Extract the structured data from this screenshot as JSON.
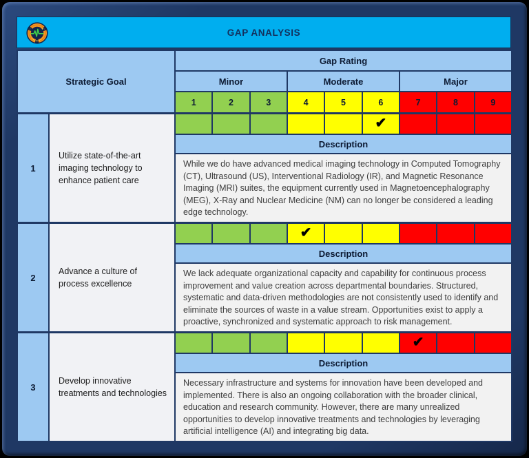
{
  "title": "GAP ANALYSIS",
  "logo": {
    "description": "circular medical seal, orange ring with green ECG pulse line"
  },
  "table": {
    "strategic_goal_header": "Strategic Goal",
    "gap_rating_header": "Gap Rating",
    "severity_groups": {
      "minor": "Minor",
      "moderate": "Moderate",
      "major": "Major"
    },
    "scale": [
      "1",
      "2",
      "3",
      "4",
      "5",
      "6",
      "7",
      "8",
      "9"
    ],
    "description_label": "Description",
    "checkmark_glyph": "✔",
    "rows": [
      {
        "number": "1",
        "goal": "Utilize state-of-the-art imaging technology to enhance patient care",
        "rating": 6,
        "description": "While we do have advanced medical imaging technology in Computed Tomography (CT), Ultrasound (US), Interventional Radiology (IR), and Magnetic Resonance Imaging (MRI) suites, the equipment currently used in Magnetoencephalography (MEG), X-Ray and Nuclear Medicine (NM) can no longer be considered a leading edge technology."
      },
      {
        "number": "2",
        "goal": "Advance a culture of process excellence",
        "rating": 4,
        "description": "We lack adequate organizational capacity and capability for continuous process improvement and value creation across departmental boundaries. Structured, systematic and data-driven methodologies are not consistently used to identify and eliminate the sources of waste in a value stream. Opportunities exist to apply a proactive, synchronized and systematic approach to risk management."
      },
      {
        "number": "3",
        "goal": "Develop innovative treatments and technologies",
        "rating": 7,
        "description": "Necessary infrastructure and systems for innovation have been developed and implemented. There is also an ongoing collaboration with the broader clinical, education and research community. However, there are many unrealized opportunities to develop innovative treatments and technologies by leveraging artificial intelligence (AI) and integrating big data."
      }
    ]
  },
  "colors": {
    "frame_navy": "#1F3864",
    "title_bar_cyan": "#00AEEF",
    "panel_blue": "#9DC9F2",
    "minor_green": "#92D050",
    "moderate_yellow": "#FFFF00",
    "major_red": "#FF0000",
    "description_bg": "#F2F2F2",
    "grid_line_navy": "#1F3864"
  }
}
